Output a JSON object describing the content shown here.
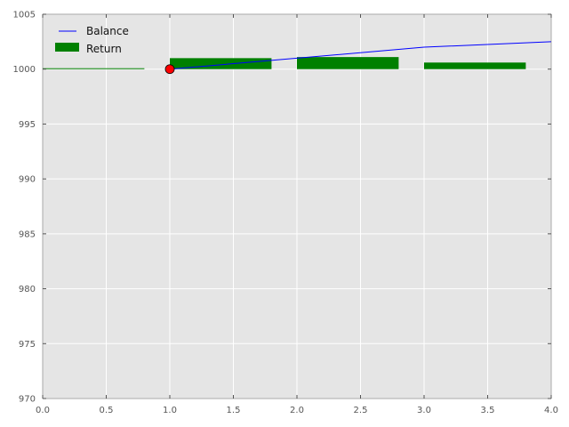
{
  "chart_data": {
    "type": "line",
    "title": "",
    "xlabel": "",
    "ylabel": "",
    "xlim": [
      0.0,
      4.0
    ],
    "ylim": [
      970,
      1005
    ],
    "xticks": [
      "0.0",
      "0.5",
      "1.0",
      "1.5",
      "2.0",
      "2.5",
      "3.0",
      "3.5",
      "4.0"
    ],
    "yticks": [
      "970",
      "975",
      "980",
      "985",
      "990",
      "995",
      "1000",
      "1005"
    ],
    "grid": true,
    "legend": {
      "placement": "top-left",
      "entries": [
        {
          "label": "Balance",
          "kind": "line",
          "color": "#0000ff"
        },
        {
          "label": "Return",
          "kind": "bar",
          "color": "#008000"
        }
      ]
    },
    "series": [
      {
        "name": "Balance",
        "kind": "line",
        "color": "#0000ff",
        "x": [
          1.0,
          2.0,
          3.0,
          4.0
        ],
        "y": [
          1000.0,
          1001.0,
          1002.0,
          1002.5
        ]
      },
      {
        "name": "Return",
        "kind": "bar",
        "color": "#008000",
        "width": 0.8,
        "x": [
          0.0,
          1.0,
          2.0,
          3.0
        ],
        "y": [
          0.0,
          1.0,
          1.1,
          0.6
        ],
        "baseline": 1000
      }
    ],
    "marker": {
      "x": 1.0,
      "y": 1000.0,
      "color": "#ff0000",
      "edge": "#000000"
    },
    "colors": {
      "plot_bg": "#e5e5e5",
      "grid": "#ffffff",
      "axes": "#555555"
    }
  }
}
